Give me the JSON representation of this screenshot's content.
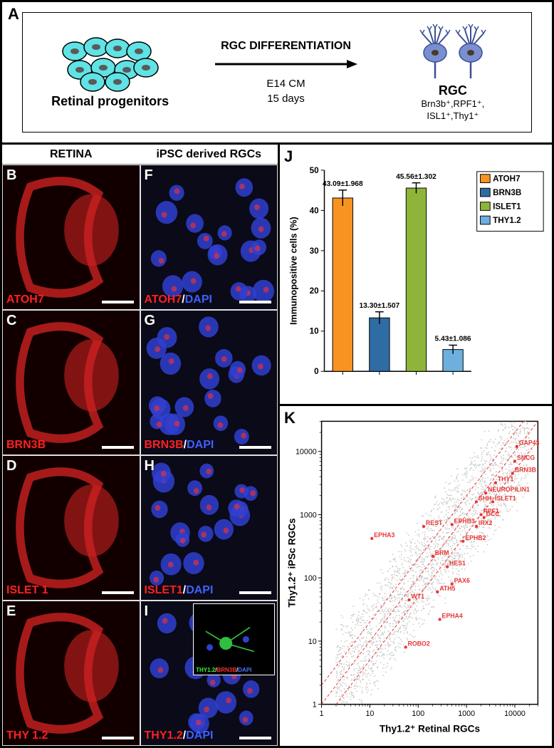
{
  "panelA": {
    "letter": "A",
    "progenitor_label": "Retinal progenitors",
    "diff_title": "RGC DIFFERENTIATION",
    "diff_sub1": "E14 CM",
    "diff_sub2": "15 days",
    "rgc_title": "RGC",
    "rgc_sub1": "Brn3b⁺,RPF1⁺,",
    "rgc_sub2": "ISL1⁺,Thy1⁺",
    "progenitor_fill": "#5fe3e5",
    "progenitor_stroke": "#000000",
    "progenitor_nucleus": "#5a5a5a",
    "rgc_fill": "#7a8fd0",
    "rgc_stroke": "#3b4f95",
    "rgc_nucleus": "#4a3a2a"
  },
  "columns": {
    "left": "RETINA",
    "right": "iPSC derived RGCs"
  },
  "micrographs": [
    {
      "letter": "B",
      "markers": [
        {
          "text": "ATOH7",
          "color": "#ff2020"
        }
      ],
      "pattern": "retina"
    },
    {
      "letter": "F",
      "markers": [
        {
          "text": "ATOH7",
          "color": "#ff2020"
        },
        {
          "text": "/",
          "color": "#fff"
        },
        {
          "text": "DAPI",
          "color": "#4060ff"
        }
      ],
      "pattern": "cells"
    },
    {
      "letter": "C",
      "markers": [
        {
          "text": "BRN3B",
          "color": "#ff2020"
        }
      ],
      "pattern": "retina"
    },
    {
      "letter": "G",
      "markers": [
        {
          "text": "BRN3B",
          "color": "#ff2020"
        },
        {
          "text": "/",
          "color": "#fff"
        },
        {
          "text": "DAPI",
          "color": "#4060ff"
        }
      ],
      "pattern": "cells"
    },
    {
      "letter": "D",
      "markers": [
        {
          "text": "ISLET 1",
          "color": "#ff2020"
        }
      ],
      "pattern": "retina"
    },
    {
      "letter": "H",
      "markers": [
        {
          "text": "ISLET1",
          "color": "#ff2020"
        },
        {
          "text": "/",
          "color": "#fff"
        },
        {
          "text": "DAPI",
          "color": "#4060ff"
        }
      ],
      "pattern": "cells"
    },
    {
      "letter": "E",
      "markers": [
        {
          "text": "THY 1.2",
          "color": "#ff2020"
        }
      ],
      "pattern": "retina"
    },
    {
      "letter": "I",
      "markers": [
        {
          "text": "THY1.2",
          "color": "#ff2020"
        },
        {
          "text": "/",
          "color": "#fff"
        },
        {
          "text": "DAPI",
          "color": "#4060ff"
        }
      ],
      "pattern": "cells",
      "inset": true,
      "inset_labels": [
        {
          "t": "THY1.2",
          "c": "#30ff30"
        },
        {
          "t": "/",
          "c": "#fff"
        },
        {
          "t": "BRN3B",
          "c": "#ff3030"
        },
        {
          "t": "/",
          "c": "#fff"
        },
        {
          "t": "DAPI",
          "c": "#5070ff"
        }
      ]
    }
  ],
  "bar_chart": {
    "letter": "J",
    "ylabel": "Immunopositive cells (%)",
    "ylim": [
      0,
      50
    ],
    "ytick_step": 10,
    "categories": [
      "ATOH7",
      "BRN3B",
      "ISLET1",
      "THY1.2"
    ],
    "values": [
      43.09,
      13.3,
      45.56,
      5.43
    ],
    "errors": [
      1.968,
      1.507,
      1.302,
      1.086
    ],
    "value_labels": [
      "43.09±1.968",
      "13.30±1.507",
      "45.56±1.302",
      "5.43±1.086"
    ],
    "colors": [
      "#f79321",
      "#2e6ca4",
      "#8fb43a",
      "#6db0e0"
    ],
    "legend_colors": [
      "#f79321",
      "#2e6ca4",
      "#8fb43a",
      "#6db0e0"
    ],
    "axis_color": "#000000",
    "label_fontsize": 13,
    "tick_fontsize": 12,
    "title_fontsize": 12,
    "bar_border": "#000000"
  },
  "scatter": {
    "letter": "K",
    "xlabel": "Thy1.2⁺ Retinal RGCs",
    "ylabel": "Thy1.2⁺ iPSc RGCs",
    "xlim_log": [
      1,
      30000
    ],
    "ylim_log": [
      1,
      30000
    ],
    "ticks": [
      1,
      10,
      100,
      1000,
      10000
    ],
    "dot_color": "#c8c8c8",
    "highlight_color": "#e83535",
    "axis_color": "#000000",
    "identity_line_color": "#e83535",
    "dashed_line_color": "#e83535",
    "highlight_genes": [
      {
        "name": "GAP43",
        "x": 11000,
        "y": 12000
      },
      {
        "name": "SNCG",
        "x": 10000,
        "y": 7000
      },
      {
        "name": "BRN3B",
        "x": 9000,
        "y": 4500
      },
      {
        "name": "THY1",
        "x": 4000,
        "y": 3200
      },
      {
        "name": "NEUROPILIN1",
        "x": 2500,
        "y": 2200
      },
      {
        "name": "ISLET1",
        "x": 3500,
        "y": 1600
      },
      {
        "name": "SHH",
        "x": 1600,
        "y": 1600
      },
      {
        "name": "RPF1",
        "x": 2000,
        "y": 1000
      },
      {
        "name": "DCC",
        "x": 2300,
        "y": 900
      },
      {
        "name": "IRX2",
        "x": 1600,
        "y": 650
      },
      {
        "name": "EPHB3",
        "x": 500,
        "y": 700
      },
      {
        "name": "EPHB2",
        "x": 850,
        "y": 380
      },
      {
        "name": "REST",
        "x": 130,
        "y": 650
      },
      {
        "name": "EPHA3",
        "x": 11,
        "y": 420
      },
      {
        "name": "BRM",
        "x": 200,
        "y": 220
      },
      {
        "name": "HES1",
        "x": 400,
        "y": 150
      },
      {
        "name": "PAX6",
        "x": 500,
        "y": 80
      },
      {
        "name": "ATH5",
        "x": 250,
        "y": 60
      },
      {
        "name": "WT1",
        "x": 65,
        "y": 45
      },
      {
        "name": "EPHA4",
        "x": 280,
        "y": 22
      },
      {
        "name": "ROBO2",
        "x": 55,
        "y": 8
      }
    ]
  }
}
